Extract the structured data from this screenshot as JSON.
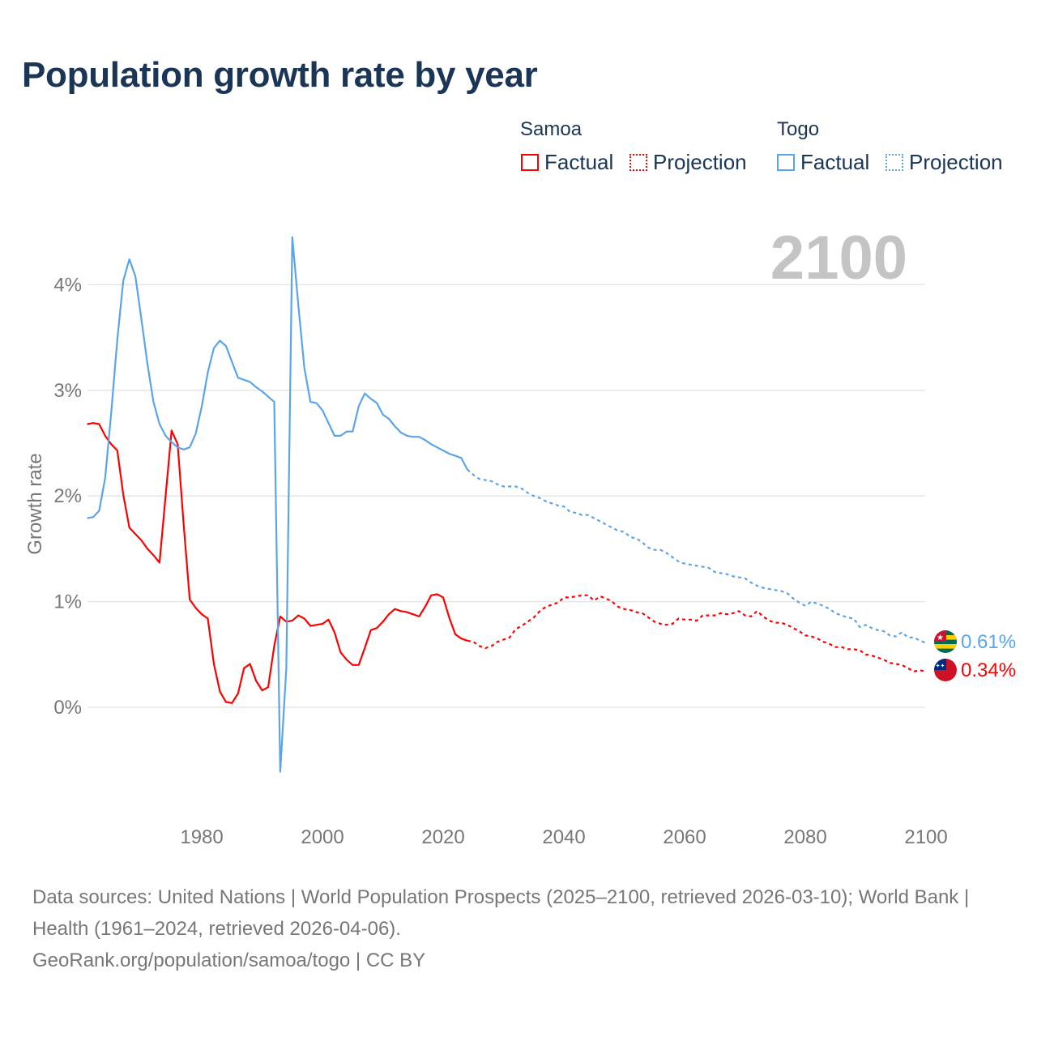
{
  "title": "Population growth rate by year",
  "legend": {
    "groups": [
      {
        "country": "Samoa",
        "color": "#ff0000",
        "factual": "Factual",
        "projection": "Projection"
      },
      {
        "country": "Togo",
        "color": "#5ba4e8",
        "factual": "Factual",
        "projection": "Projection"
      }
    ]
  },
  "year_watermark": "2100",
  "end_labels": {
    "togo": "0.61%",
    "samoa": "0.34%"
  },
  "footer": {
    "line1": "Data sources: United Nations | World Population Prospects (2025–2100, retrieved 2026-03-10); World Bank | Health (1961–2024, retrieved 2026-04-06).",
    "line2": "GeoRank.org/population/samoa/togo | CC BY"
  },
  "chart_data": {
    "type": "line",
    "title": "Population growth rate by year",
    "xlabel": "",
    "ylabel": "Growth rate",
    "xlim": [
      1961,
      2100
    ],
    "ylim": [
      -1.0,
      4.5
    ],
    "x_ticks": [
      "1980",
      "2000",
      "2020",
      "2040",
      "2060",
      "2080",
      "2100"
    ],
    "y_ticks": [
      "0%",
      "1%",
      "2%",
      "3%",
      "4%"
    ],
    "y_tick_values": [
      0,
      1,
      2,
      3,
      4
    ],
    "grid": true,
    "series": [
      {
        "name": "Samoa Factual",
        "color": "#ff0000",
        "dashed": false,
        "start_year": 1961,
        "values": [
          2.68,
          2.69,
          2.68,
          2.57,
          2.49,
          2.43,
          2.01,
          1.7,
          1.64,
          1.58,
          1.5,
          1.44,
          1.37,
          2.0,
          2.62,
          2.49,
          1.73,
          1.02,
          0.94,
          0.88,
          0.84,
          0.41,
          0.15,
          0.05,
          0.04,
          0.13,
          0.37,
          0.41,
          0.25,
          0.16,
          0.19,
          0.58,
          0.86,
          0.81,
          0.82,
          0.87,
          0.84,
          0.77,
          0.78,
          0.79,
          0.83,
          0.71,
          0.52,
          0.45,
          0.4,
          0.4,
          0.56,
          0.73,
          0.75,
          0.81,
          0.88,
          0.93,
          0.91,
          0.9,
          0.88,
          0.86,
          0.95,
          1.06,
          1.07,
          1.04,
          0.85,
          0.69,
          0.65,
          0.63
        ]
      },
      {
        "name": "Samoa Projection",
        "color": "#ff0000",
        "dashed": true,
        "start_year": 2025,
        "values": [
          0.62,
          0.58,
          0.56,
          0.58,
          0.62,
          0.64,
          0.66,
          0.74,
          0.77,
          0.81,
          0.85,
          0.91,
          0.95,
          0.97,
          0.99,
          1.04,
          1.04,
          1.05,
          1.06,
          1.06,
          1.01,
          1.05,
          1.03,
          1.0,
          0.95,
          0.93,
          0.92,
          0.9,
          0.89,
          0.85,
          0.81,
          0.79,
          0.78,
          0.79,
          0.84,
          0.83,
          0.83,
          0.82,
          0.87,
          0.87,
          0.87,
          0.89,
          0.88,
          0.89,
          0.91,
          0.87,
          0.86,
          0.91,
          0.86,
          0.82,
          0.8,
          0.8,
          0.78,
          0.75,
          0.72,
          0.68,
          0.67,
          0.65,
          0.62,
          0.6,
          0.57,
          0.57,
          0.55,
          0.55,
          0.54,
          0.5,
          0.49,
          0.47,
          0.45,
          0.42,
          0.41,
          0.4,
          0.37,
          0.34,
          0.35,
          0.34
        ]
      },
      {
        "name": "Togo Factual",
        "color": "#5ba4e8",
        "dashed": false,
        "start_year": 1961,
        "values": [
          1.79,
          1.8,
          1.86,
          2.17,
          2.79,
          3.48,
          4.04,
          4.24,
          4.08,
          3.67,
          3.25,
          2.89,
          2.68,
          2.57,
          2.51,
          2.46,
          2.44,
          2.46,
          2.59,
          2.85,
          3.17,
          3.4,
          3.47,
          3.42,
          3.27,
          3.12,
          3.1,
          3.08,
          3.03,
          2.99,
          2.94,
          2.89,
          -0.61,
          0.37,
          4.45,
          3.8,
          3.21,
          2.89,
          2.88,
          2.81,
          2.69,
          2.57,
          2.57,
          2.61,
          2.61,
          2.85,
          2.97,
          2.92,
          2.88,
          2.77,
          2.73,
          2.66,
          2.6,
          2.57,
          2.56,
          2.56,
          2.53,
          2.49,
          2.46,
          2.43,
          2.4,
          2.38,
          2.36,
          2.25
        ]
      },
      {
        "name": "Togo Projection",
        "color": "#5ba4e8",
        "dashed": true,
        "start_year": 2025,
        "values": [
          2.2,
          2.16,
          2.15,
          2.14,
          2.11,
          2.09,
          2.09,
          2.09,
          2.07,
          2.03,
          2.0,
          1.98,
          1.95,
          1.93,
          1.91,
          1.9,
          1.85,
          1.84,
          1.82,
          1.82,
          1.79,
          1.76,
          1.73,
          1.7,
          1.67,
          1.66,
          1.61,
          1.6,
          1.56,
          1.51,
          1.49,
          1.49,
          1.46,
          1.42,
          1.38,
          1.36,
          1.35,
          1.34,
          1.33,
          1.32,
          1.28,
          1.27,
          1.26,
          1.24,
          1.23,
          1.22,
          1.18,
          1.15,
          1.13,
          1.12,
          1.11,
          1.1,
          1.08,
          1.03,
          0.99,
          0.96,
          1.0,
          0.98,
          0.96,
          0.93,
          0.89,
          0.87,
          0.85,
          0.84,
          0.76,
          0.78,
          0.75,
          0.73,
          0.72,
          0.68,
          0.67,
          0.71,
          0.66,
          0.66,
          0.63,
          0.61
        ]
      }
    ]
  }
}
